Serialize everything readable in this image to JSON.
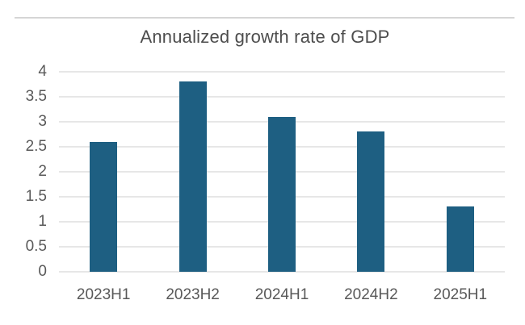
{
  "page": {
    "divider_color": "#d5d5d5",
    "background_color": "#ffffff"
  },
  "chart_data": {
    "type": "bar",
    "title": "Annualized growth rate of GDP",
    "categories": [
      "2023H1",
      "2023H2",
      "2024H1",
      "2024H2",
      "2025H1"
    ],
    "values": [
      2.6,
      3.8,
      3.1,
      2.8,
      1.3
    ],
    "xlabel": "",
    "ylabel": "",
    "ylim": [
      0,
      4
    ],
    "ytick_step": 0.5,
    "yticks": [
      "0",
      "0.5",
      "1",
      "1.5",
      "2",
      "2.5",
      "3",
      "3.5",
      "4"
    ],
    "grid": true,
    "legend": "none",
    "bar_color": "#1e5f82",
    "gridline_color": "#e7e7e7",
    "axis_text_color": "#595959",
    "title_color": "#4d4d4d"
  }
}
